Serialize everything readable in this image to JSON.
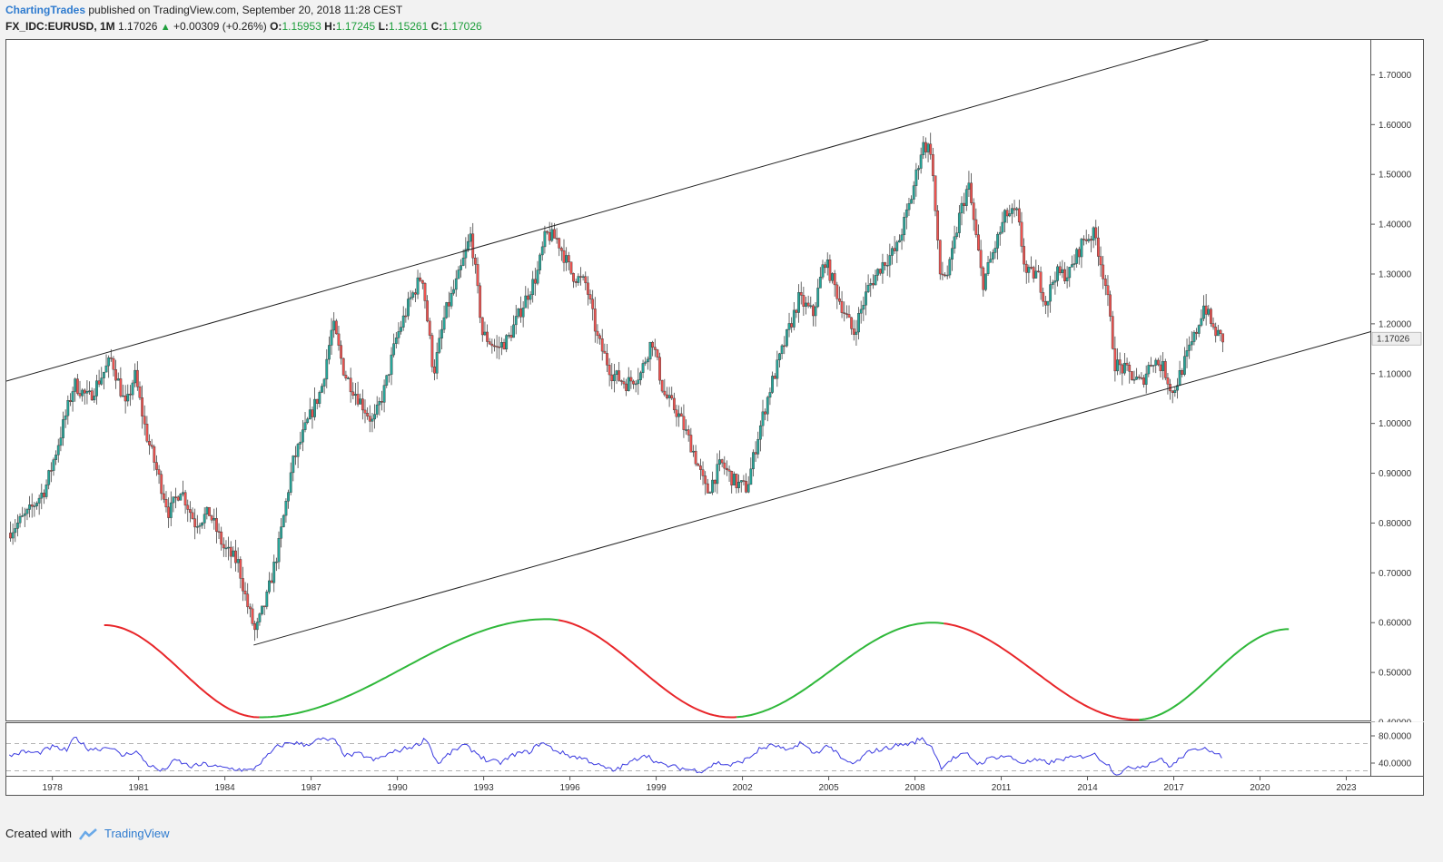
{
  "header": {
    "author": "ChartingTrades",
    "published_text": "published on TradingView.com, September 20, 2018 11:28 CEST",
    "symbol": "FX_IDC:EURUSD, 1M",
    "last": "1.17026",
    "change": "+0.00309 (+0.26%)",
    "open_label": "O:",
    "open": "1.15953",
    "high_label": "H:",
    "high": "1.17245",
    "low_label": "L:",
    "low": "1.15261",
    "close_label": "C:",
    "close": "1.17026"
  },
  "footer": {
    "created_with": "Created with",
    "brand": "TradingView"
  },
  "colors": {
    "up": "#26a69a",
    "down": "#ef5350",
    "green_line": "#2fb83a",
    "red_line": "#e8262a",
    "rsi": "#3a3ae0"
  },
  "chart_data": [
    {
      "type": "candlestick",
      "title": "",
      "symbol": "FX_IDC:EURUSD",
      "interval": "1M",
      "y_ticks": [
        "1.70000",
        "1.60000",
        "1.50000",
        "1.40000",
        "1.30000",
        "1.20000",
        "1.10000",
        "1.00000",
        "0.90000",
        "0.80000",
        "0.70000",
        "0.60000",
        "0.50000",
        "0.40000"
      ],
      "ylim": [
        0.4,
        1.77
      ],
      "x_ticks": [
        "1978",
        "1981",
        "1984",
        "1987",
        "1990",
        "1993",
        "1996",
        "1999",
        "2002",
        "2005",
        "2008",
        "2011",
        "2014",
        "2017",
        "2020",
        "2023"
      ],
      "xlim": [
        1976.4,
        2023.9
      ],
      "last_price_label": "1.17026",
      "price_path": [
        [
          1976.5,
          0.78
        ],
        [
          1977.2,
          0.82
        ],
        [
          1977.8,
          0.87
        ],
        [
          1978.2,
          0.95
        ],
        [
          1978.8,
          1.08
        ],
        [
          1979.3,
          1.05
        ],
        [
          1979.8,
          1.1
        ],
        [
          1980.1,
          1.13
        ],
        [
          1980.6,
          1.03
        ],
        [
          1980.9,
          1.1
        ],
        [
          1981.3,
          0.98
        ],
        [
          1981.8,
          0.88
        ],
        [
          1982.1,
          0.82
        ],
        [
          1982.5,
          0.87
        ],
        [
          1983.0,
          0.8
        ],
        [
          1983.5,
          0.82
        ],
        [
          1984.0,
          0.75
        ],
        [
          1984.5,
          0.72
        ],
        [
          1984.8,
          0.64
        ],
        [
          1985.1,
          0.58
        ],
        [
          1985.5,
          0.65
        ],
        [
          1985.9,
          0.75
        ],
        [
          1986.4,
          0.92
        ],
        [
          1986.9,
          1.0
        ],
        [
          1987.4,
          1.07
        ],
        [
          1987.8,
          1.2
        ],
        [
          1988.2,
          1.1
        ],
        [
          1988.7,
          1.05
        ],
        [
          1989.2,
          1.0
        ],
        [
          1989.6,
          1.07
        ],
        [
          1990.0,
          1.17
        ],
        [
          1990.5,
          1.25
        ],
        [
          1990.9,
          1.3
        ],
        [
          1991.3,
          1.1
        ],
        [
          1991.7,
          1.22
        ],
        [
          1992.2,
          1.3
        ],
        [
          1992.6,
          1.38
        ],
        [
          1993.0,
          1.18
        ],
        [
          1993.5,
          1.15
        ],
        [
          1993.9,
          1.17
        ],
        [
          1994.5,
          1.25
        ],
        [
          1994.9,
          1.3
        ],
        [
          1995.2,
          1.38
        ],
        [
          1995.6,
          1.37
        ],
        [
          1996.1,
          1.3
        ],
        [
          1996.6,
          1.28
        ],
        [
          1997.0,
          1.17
        ],
        [
          1997.5,
          1.1
        ],
        [
          1998.0,
          1.08
        ],
        [
          1998.5,
          1.1
        ],
        [
          1998.9,
          1.17
        ],
        [
          1999.3,
          1.06
        ],
        [
          1999.8,
          1.02
        ],
        [
          2000.3,
          0.95
        ],
        [
          2000.8,
          0.86
        ],
        [
          2001.3,
          0.92
        ],
        [
          2001.8,
          0.88
        ],
        [
          2002.2,
          0.87
        ],
        [
          2002.6,
          0.98
        ],
        [
          2003.0,
          1.07
        ],
        [
          2003.5,
          1.16
        ],
        [
          2004.0,
          1.25
        ],
        [
          2004.5,
          1.22
        ],
        [
          2004.9,
          1.33
        ],
        [
          2005.4,
          1.25
        ],
        [
          2005.9,
          1.18
        ],
        [
          2006.4,
          1.27
        ],
        [
          2006.9,
          1.32
        ],
        [
          2007.4,
          1.35
        ],
        [
          2007.9,
          1.45
        ],
        [
          2008.3,
          1.56
        ],
        [
          2008.6,
          1.55
        ],
        [
          2008.9,
          1.3
        ],
        [
          2009.2,
          1.3
        ],
        [
          2009.6,
          1.42
        ],
        [
          2009.9,
          1.48
        ],
        [
          2010.4,
          1.28
        ],
        [
          2010.8,
          1.35
        ],
        [
          2011.2,
          1.42
        ],
        [
          2011.6,
          1.42
        ],
        [
          2011.9,
          1.3
        ],
        [
          2012.3,
          1.3
        ],
        [
          2012.6,
          1.24
        ],
        [
          2012.9,
          1.3
        ],
        [
          2013.4,
          1.3
        ],
        [
          2013.9,
          1.37
        ],
        [
          2014.3,
          1.38
        ],
        [
          2014.7,
          1.27
        ],
        [
          2015.0,
          1.12
        ],
        [
          2015.5,
          1.1
        ],
        [
          2015.9,
          1.08
        ],
        [
          2016.3,
          1.13
        ],
        [
          2016.7,
          1.11
        ],
        [
          2017.0,
          1.06
        ],
        [
          2017.4,
          1.12
        ],
        [
          2017.8,
          1.18
        ],
        [
          2018.1,
          1.24
        ],
        [
          2018.4,
          1.19
        ],
        [
          2018.7,
          1.17
        ]
      ],
      "trend_lines": [
        {
          "name": "channel-upper",
          "points": [
            [
              1976.4,
              1.085
            ],
            [
              2018.2,
              1.77
            ]
          ]
        },
        {
          "name": "channel-lower",
          "points": [
            [
              1985.0,
              0.555
            ],
            [
              2023.9,
              1.185
            ]
          ]
        }
      ],
      "cycle_curve": {
        "green_segments": [
          [
            1985.2,
            1995.6
          ],
          [
            2001.8,
            2009.0
          ],
          [
            2015.8,
            2021.0
          ]
        ],
        "red_segments": [
          [
            1979.8,
            1985.2
          ],
          [
            1995.6,
            2001.8
          ],
          [
            2009.0,
            2015.8
          ]
        ],
        "peaks": [
          [
            1979.8,
            0.595
          ],
          [
            1995.2,
            0.607
          ],
          [
            2008.6,
            0.6
          ]
        ],
        "troughs": [
          [
            1985.2,
            0.41
          ],
          [
            2001.6,
            0.41
          ],
          [
            2015.7,
            0.405
          ]
        ],
        "end": [
          2021.0,
          0.587
        ]
      }
    },
    {
      "type": "line",
      "name": "",
      "y_ticks": [
        "80.0000",
        "40.0000"
      ],
      "ylim": [
        20,
        100
      ],
      "levels": [
        70,
        30
      ],
      "series": [
        {
          "values": [
            [
              1976.5,
              52
            ],
            [
              1977.0,
              58
            ],
            [
              1977.5,
              56
            ],
            [
              1978.0,
              65
            ],
            [
              1978.5,
              60
            ],
            [
              1978.8,
              80
            ],
            [
              1979.2,
              63
            ],
            [
              1979.6,
              62
            ],
            [
              1980.0,
              66
            ],
            [
              1980.4,
              52
            ],
            [
              1980.9,
              59
            ],
            [
              1981.3,
              40
            ],
            [
              1981.8,
              29
            ],
            [
              1982.3,
              46
            ],
            [
              1982.8,
              36
            ],
            [
              1983.3,
              40
            ],
            [
              1983.8,
              35
            ],
            [
              1984.3,
              33
            ],
            [
              1984.9,
              30
            ],
            [
              1985.4,
              48
            ],
            [
              1985.8,
              65
            ],
            [
              1986.3,
              72
            ],
            [
              1986.8,
              68
            ],
            [
              1987.3,
              76
            ],
            [
              1987.8,
              75
            ],
            [
              1988.2,
              52
            ],
            [
              1988.7,
              55
            ],
            [
              1989.2,
              45
            ],
            [
              1989.7,
              55
            ],
            [
              1990.2,
              62
            ],
            [
              1990.7,
              68
            ],
            [
              1991.0,
              78
            ],
            [
              1991.4,
              40
            ],
            [
              1991.8,
              55
            ],
            [
              1992.3,
              68
            ],
            [
              1992.7,
              58
            ],
            [
              1993.1,
              45
            ],
            [
              1993.6,
              42
            ],
            [
              1994.1,
              55
            ],
            [
              1994.6,
              58
            ],
            [
              1995.0,
              72
            ],
            [
              1995.5,
              60
            ],
            [
              1996.0,
              52
            ],
            [
              1996.5,
              48
            ],
            [
              1997.0,
              38
            ],
            [
              1997.5,
              30
            ],
            [
              1998.1,
              42
            ],
            [
              1998.6,
              55
            ],
            [
              1999.1,
              40
            ],
            [
              1999.6,
              36
            ],
            [
              2000.1,
              32
            ],
            [
              2000.6,
              30
            ],
            [
              2001.1,
              42
            ],
            [
              2001.6,
              38
            ],
            [
              2002.2,
              48
            ],
            [
              2002.6,
              62
            ],
            [
              2003.1,
              68
            ],
            [
              2003.6,
              58
            ],
            [
              2004.0,
              72
            ],
            [
              2004.5,
              55
            ],
            [
              2005.0,
              68
            ],
            [
              2005.5,
              45
            ],
            [
              2005.9,
              40
            ],
            [
              2006.4,
              58
            ],
            [
              2006.9,
              62
            ],
            [
              2007.4,
              68
            ],
            [
              2007.9,
              70
            ],
            [
              2008.2,
              78
            ],
            [
              2008.6,
              65
            ],
            [
              2008.9,
              35
            ],
            [
              2009.3,
              48
            ],
            [
              2009.8,
              55
            ],
            [
              2010.2,
              40
            ],
            [
              2010.7,
              50
            ],
            [
              2011.2,
              52
            ],
            [
              2011.7,
              42
            ],
            [
              2012.2,
              45
            ],
            [
              2012.7,
              42
            ],
            [
              2013.2,
              48
            ],
            [
              2013.7,
              50
            ],
            [
              2014.2,
              55
            ],
            [
              2014.7,
              40
            ],
            [
              2015.0,
              25
            ],
            [
              2015.5,
              35
            ],
            [
              2016.0,
              38
            ],
            [
              2016.5,
              48
            ],
            [
              2016.9,
              36
            ],
            [
              2017.4,
              55
            ],
            [
              2017.8,
              62
            ],
            [
              2018.1,
              66
            ],
            [
              2018.5,
              52
            ],
            [
              2018.7,
              52
            ]
          ]
        }
      ]
    }
  ]
}
